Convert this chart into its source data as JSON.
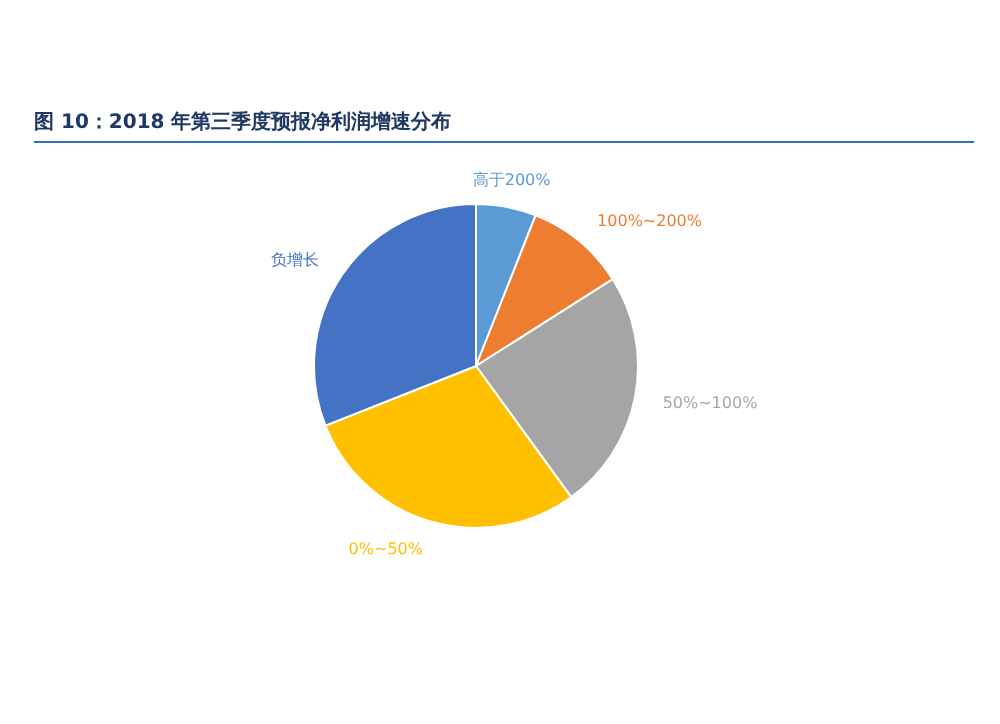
{
  "chart_data": {
    "type": "pie",
    "title": "图 10：2018 年第三季度预报净利润增速分布",
    "categories": [
      "高于200%",
      "100%~200%",
      "50%~100%",
      "0%~50%",
      "负增长"
    ],
    "values": [
      6,
      10,
      24,
      29,
      31
    ],
    "colors": [
      "#5b9bd5",
      "#ed7d31",
      "#a5a5a5",
      "#ffc000",
      "#4472c4"
    ]
  }
}
